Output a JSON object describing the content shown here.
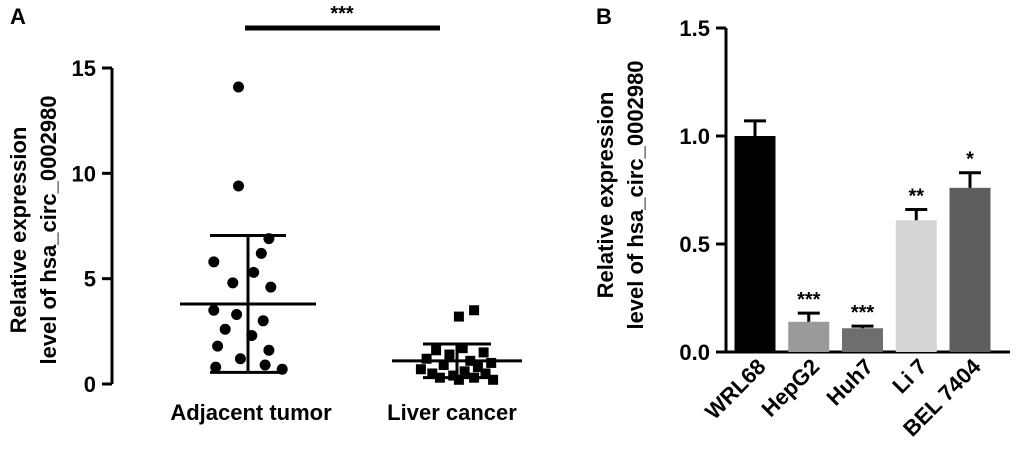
{
  "panels": {
    "a": {
      "letter": "A"
    },
    "b": {
      "letter": "B"
    }
  },
  "chart_data": [
    {
      "type": "scatter",
      "ylabel_line1": "Relative expression",
      "ylabel_line2": "level of hsa_circ_0002980",
      "ylim": [
        0,
        15
      ],
      "yticks": [
        "0",
        "5",
        "10",
        "15"
      ],
      "categories": [
        "Adjacent tumor",
        "Liver cancer"
      ],
      "comparison_label": "***",
      "groups": [
        {
          "name": "Adjacent tumor",
          "marker": "circle",
          "mean": 3.8,
          "sd_low": 0.55,
          "sd_high": 7.05,
          "points": [
            {
              "y": 14.1,
              "dx": -0.25
            },
            {
              "y": 9.4,
              "dx": -0.25
            },
            {
              "y": 6.9,
              "dx": 0.55
            },
            {
              "y": 6.2,
              "dx": 0.35
            },
            {
              "y": 5.8,
              "dx": -0.9
            },
            {
              "y": 5.3,
              "dx": 0.15
            },
            {
              "y": 4.8,
              "dx": -0.4
            },
            {
              "y": 4.6,
              "dx": 0.6
            },
            {
              "y": 3.5,
              "dx": -0.9
            },
            {
              "y": 3.3,
              "dx": -0.3
            },
            {
              "y": 3.0,
              "dx": 0.4
            },
            {
              "y": 2.6,
              "dx": -0.6
            },
            {
              "y": 2.3,
              "dx": 0.1
            },
            {
              "y": 1.8,
              "dx": -0.8
            },
            {
              "y": 1.6,
              "dx": 0.55
            },
            {
              "y": 1.2,
              "dx": -0.2
            },
            {
              "y": 0.9,
              "dx": 0.45
            },
            {
              "y": 0.8,
              "dx": -0.85
            },
            {
              "y": 0.7,
              "dx": 0.9
            }
          ]
        },
        {
          "name": "Liver cancer",
          "marker": "square",
          "mean": 1.1,
          "sd_low": 0.3,
          "sd_high": 1.9,
          "points": [
            {
              "y": 3.5,
              "dx": 0.45
            },
            {
              "y": 3.2,
              "dx": 0.05
            },
            {
              "y": 1.7,
              "dx": 0.15
            },
            {
              "y": 1.6,
              "dx": -0.55
            },
            {
              "y": 1.5,
              "dx": 0.7
            },
            {
              "y": 1.4,
              "dx": -0.2
            },
            {
              "y": 1.2,
              "dx": -0.8
            },
            {
              "y": 1.1,
              "dx": 0.35
            },
            {
              "y": 1.0,
              "dx": 0.9
            },
            {
              "y": 0.9,
              "dx": -0.35
            },
            {
              "y": 0.8,
              "dx": 0.55
            },
            {
              "y": 0.7,
              "dx": -0.95
            },
            {
              "y": 0.6,
              "dx": 0.2
            },
            {
              "y": 0.5,
              "dx": -0.65
            },
            {
              "y": 0.5,
              "dx": 0.75
            },
            {
              "y": 0.4,
              "dx": -0.1
            },
            {
              "y": 0.3,
              "dx": 0.45
            },
            {
              "y": 0.3,
              "dx": -0.45
            },
            {
              "y": 0.2,
              "dx": 0.95
            },
            {
              "y": 0.2,
              "dx": 0.05
            }
          ]
        }
      ]
    },
    {
      "type": "bar",
      "ylabel_line1": "Relative expression",
      "ylabel_line2": "level of hsa_circ_0002980",
      "ylim": [
        0,
        1.5
      ],
      "yticks": [
        "0.0",
        "0.5",
        "1.0",
        "1.5"
      ],
      "categories": [
        "WRL68",
        "HepG2",
        "Huh7",
        "Li 7",
        "BEL 7404"
      ],
      "values": [
        1.0,
        0.14,
        0.11,
        0.61,
        0.76
      ],
      "errors": [
        0.07,
        0.04,
        0.01,
        0.05,
        0.07
      ],
      "significance": [
        "",
        "***",
        "***",
        "**",
        "*"
      ],
      "colors": [
        "#000000",
        "#9a9a9a",
        "#6e6e6e",
        "#d6d6d6",
        "#5e5e5e"
      ]
    }
  ]
}
